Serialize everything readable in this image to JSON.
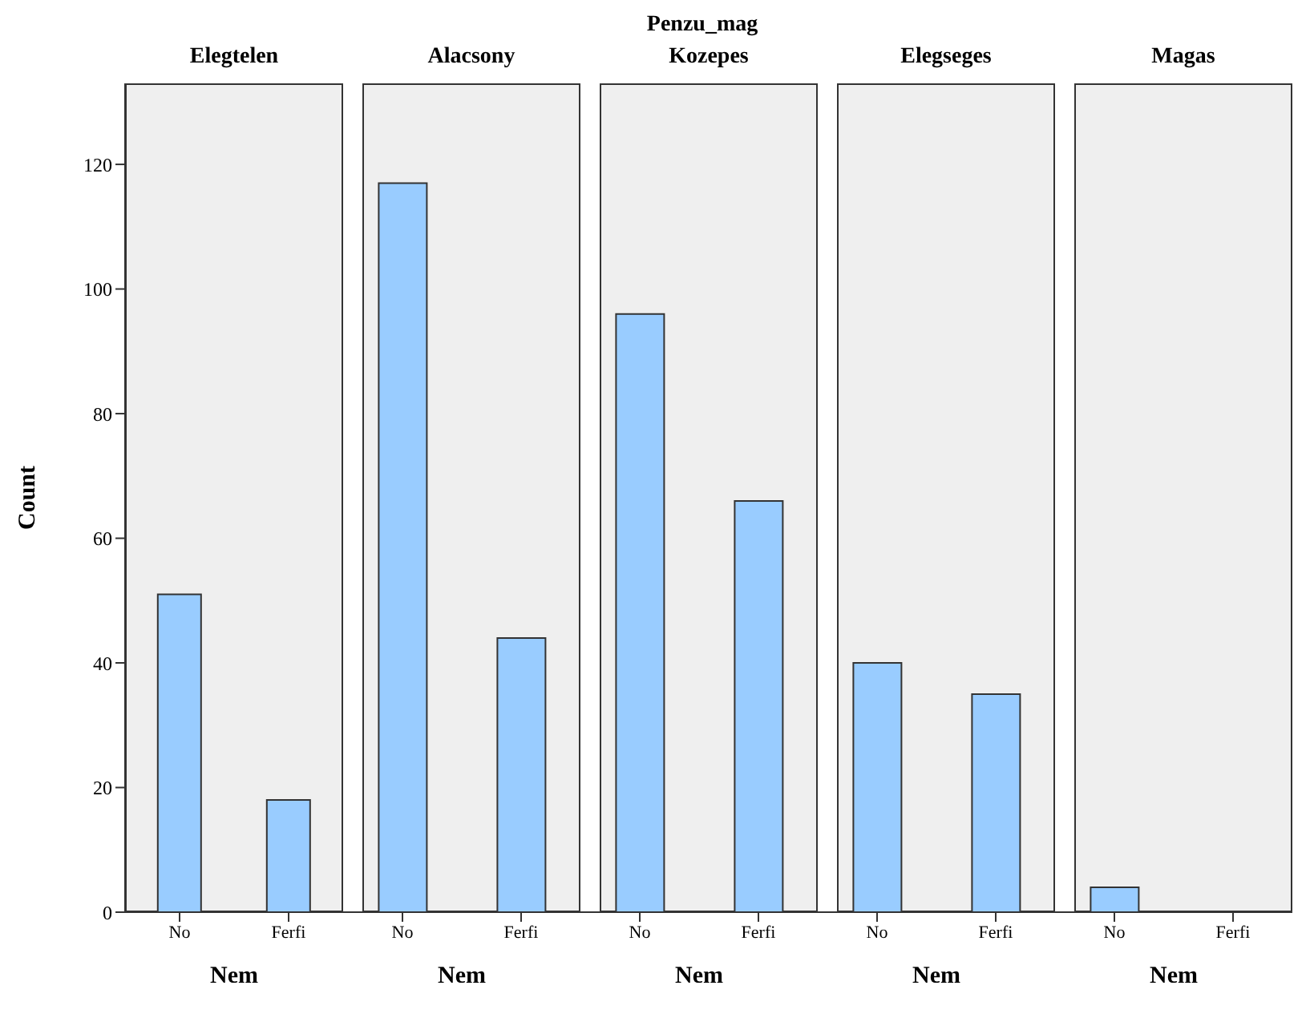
{
  "chart_data": [
    {
      "type": "bar",
      "title": "Elegtelen",
      "annotations": [
        "Penzu_mag"
      ],
      "ylabel": "Count",
      "xlabel": "Nem",
      "categories": [
        "No",
        "Ferfi"
      ],
      "values": [
        51,
        18
      ],
      "color": "#99ccff",
      "ylim": [
        0,
        133
      ],
      "yticks": [
        0,
        20,
        40,
        60,
        80,
        100,
        120
      ]
    },
    {
      "type": "bar",
      "title": "Alacsony",
      "xlabel": "Nem",
      "categories": [
        "No",
        "Ferfi"
      ],
      "values": [
        117,
        44
      ],
      "color": "#99ccff",
      "ylim": [
        0,
        133
      ],
      "tick_labels": "x"
    },
    {
      "type": "bar",
      "title": "Kozepes",
      "xlabel": "Nem",
      "categories": [
        "No",
        "Ferfi"
      ],
      "values": [
        96,
        66
      ],
      "color": "#99ccff",
      "ylim": [
        0,
        133
      ],
      "tick_labels": "x"
    },
    {
      "type": "bar",
      "title": "Elegseges",
      "xlabel": "Nem",
      "categories": [
        "No",
        "Ferfi"
      ],
      "values": [
        40,
        35
      ],
      "color": "#99ccff",
      "ylim": [
        0,
        133
      ],
      "tick_labels": "x"
    },
    {
      "type": "bar",
      "title": "Magas",
      "xlabel": "Nem",
      "categories": [
        "No",
        "Ferfi"
      ],
      "values": [
        4,
        0
      ],
      "color": "#99ccff",
      "ylim": [
        0,
        133
      ],
      "tick_labels": "x"
    }
  ]
}
